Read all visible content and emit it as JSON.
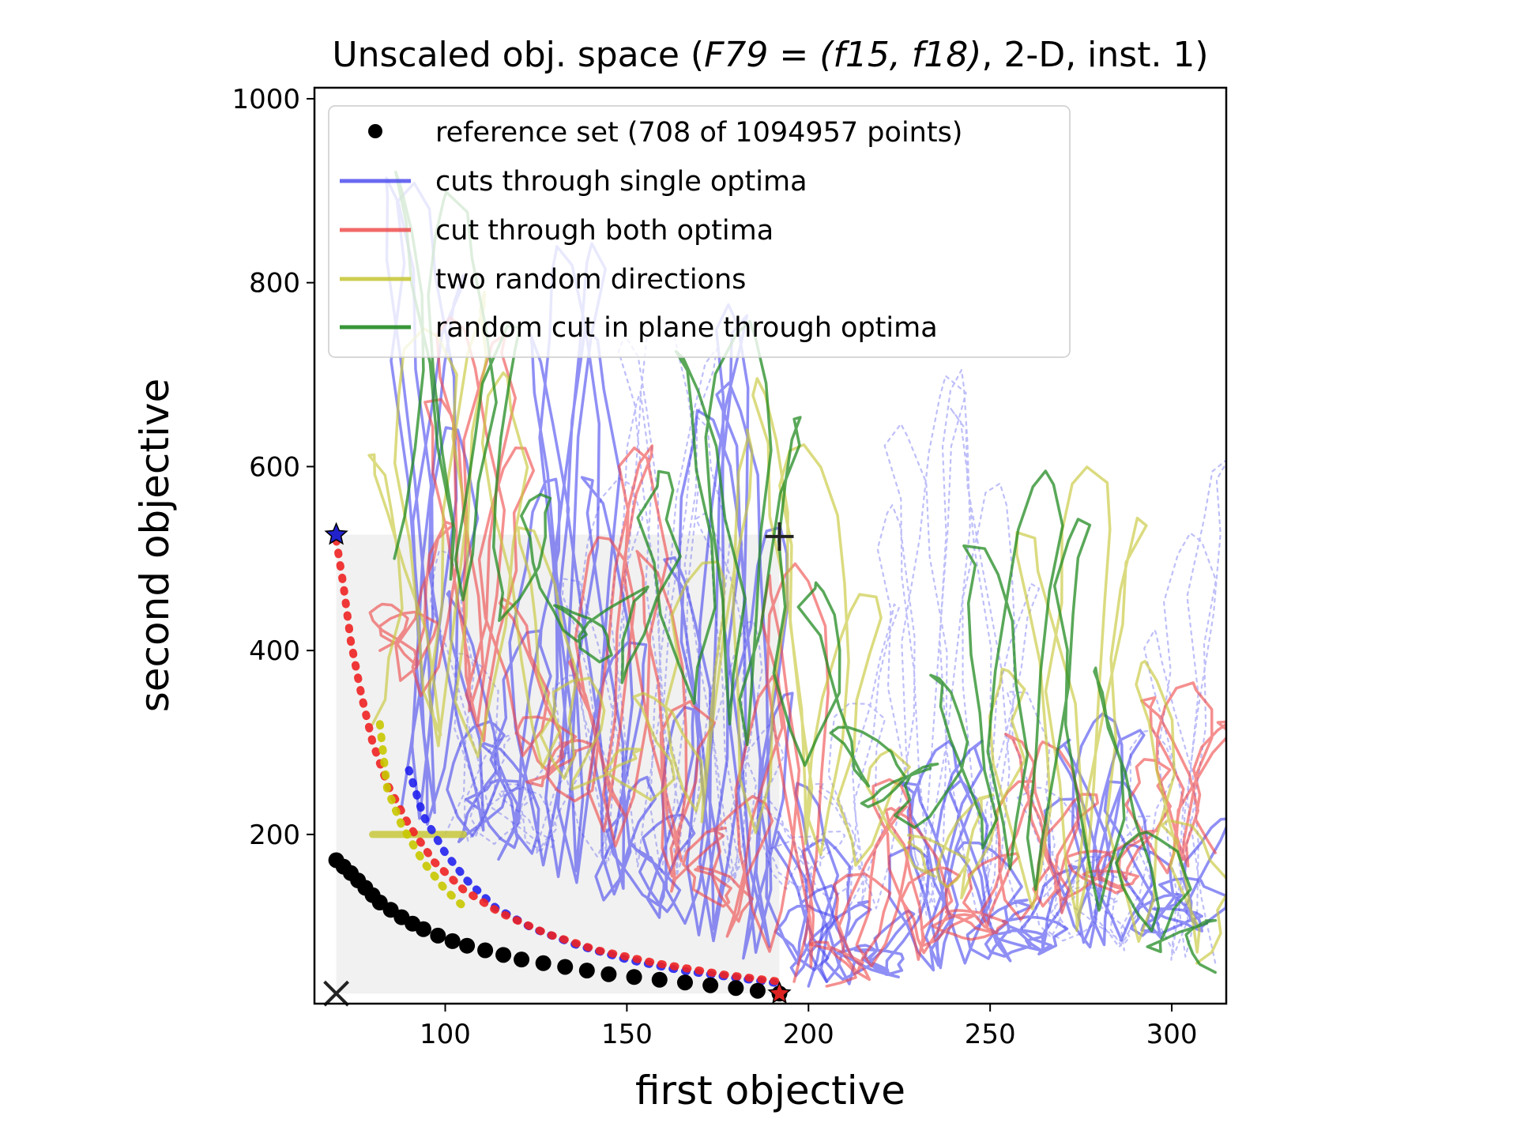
{
  "chart_data": {
    "type": "line",
    "title_text": "Unscaled obj. space (",
    "title_math": "F79 = (f15, f18)",
    "title_tail": ", 2-D, inst. 1)",
    "xlabel": "first objective",
    "ylabel": "second objective",
    "xlim": [
      64,
      315
    ],
    "ylim": [
      16,
      1012
    ],
    "xticks": [
      100,
      150,
      200,
      250,
      300
    ],
    "yticks": [
      200,
      400,
      600,
      800,
      1000
    ],
    "grid": false,
    "legend_position": "top-left",
    "legend": [
      {
        "label": "reference set (708 of 1094957 points)",
        "marker": "dot",
        "color": "#000000"
      },
      {
        "label": "cuts through single optima",
        "marker": "line",
        "color": "#4444ee"
      },
      {
        "label": "cut through both optima",
        "marker": "line",
        "color": "#ee4444"
      },
      {
        "label": "two random directions",
        "marker": "line",
        "color": "#c8c83c"
      },
      {
        "label": "random cut in plane through optima",
        "marker": "line",
        "color": "#228b22"
      }
    ],
    "region_of_interest": {
      "x": [
        70,
        192
      ],
      "y": [
        27,
        526
      ]
    },
    "markers": {
      "ideal_point": {
        "x": 70,
        "y": 27,
        "symbol": "x"
      },
      "nadir_point": {
        "x": 192,
        "y": 524,
        "symbol": "+"
      },
      "optimum_1": {
        "x": 70,
        "y": 526,
        "symbol": "star",
        "color": "#2222cc"
      },
      "optimum_2": {
        "x": 192,
        "y": 27,
        "symbol": "star",
        "color": "#dd2222"
      }
    },
    "reference_set": [
      [
        70,
        172
      ],
      [
        72,
        165
      ],
      [
        74,
        158
      ],
      [
        76,
        150
      ],
      [
        78,
        142
      ],
      [
        80,
        134
      ],
      [
        82,
        126
      ],
      [
        85,
        118
      ],
      [
        88,
        110
      ],
      [
        91,
        103
      ],
      [
        94,
        97
      ],
      [
        98,
        90
      ],
      [
        102,
        84
      ],
      [
        106,
        79
      ],
      [
        111,
        74
      ],
      [
        116,
        69
      ],
      [
        121,
        64
      ],
      [
        127,
        60
      ],
      [
        133,
        56
      ],
      [
        139,
        52
      ],
      [
        145,
        48
      ],
      [
        152,
        45
      ],
      [
        159,
        42
      ],
      [
        166,
        39
      ],
      [
        173,
        36
      ],
      [
        180,
        33
      ],
      [
        186,
        30
      ],
      [
        192,
        27
      ]
    ],
    "series": [
      {
        "name": "cuts through single optima",
        "color": "#4444ee",
        "opacity": 0.6,
        "width": 3.5,
        "style": "pendulum",
        "start": [
          88,
          230
        ],
        "end": [
          205,
          40
        ],
        "amp": 700,
        "ycap": 1012,
        "osc": 30,
        "seed": 1
      },
      {
        "name": "cuts through single optima",
        "color": "#4444ee",
        "opacity": 0.6,
        "width": 3.5,
        "style": "pendulum",
        "start": [
          200,
          35
        ],
        "end": [
          312,
          100
        ],
        "amp": 250,
        "ycap": 1012,
        "osc": 26,
        "seed": 2
      },
      {
        "name": "cuts through single optima",
        "color": "#4444ee",
        "opacity": 0.35,
        "width": 2.2,
        "dash": "4,6",
        "style": "pendulum",
        "start": [
          100,
          200
        ],
        "end": [
          312,
          60
        ],
        "amp": 600,
        "ycap": 1012,
        "osc": 40,
        "seed": 3
      },
      {
        "name": "cut through both optima",
        "color": "#ee4444",
        "opacity": 0.6,
        "width": 3.5,
        "style": "pendulum",
        "start": [
          82,
          400
        ],
        "end": [
          200,
          40
        ],
        "amp": 450,
        "ycap": 1012,
        "osc": 22,
        "seed": 4
      },
      {
        "name": "cut through both optima",
        "color": "#ee4444",
        "opacity": 0.6,
        "width": 3.5,
        "style": "pendulum",
        "start": [
          205,
          35
        ],
        "end": [
          312,
          180
        ],
        "amp": 200,
        "ycap": 800,
        "osc": 20,
        "seed": 5
      },
      {
        "name": "two random directions",
        "color": "#c8c83c",
        "opacity": 0.65,
        "width": 3.5,
        "style": "pendulum",
        "start": [
          80,
          320
        ],
        "end": [
          312,
          60
        ],
        "amp": 500,
        "ycap": 950,
        "osc": 22,
        "seed": 6
      },
      {
        "name": "random cut in plane through optima",
        "color": "#228b22",
        "opacity": 0.75,
        "width": 3.5,
        "style": "pendulum",
        "start": [
          86,
          500
        ],
        "end": [
          312,
          50
        ],
        "amp": 450,
        "ycap": 1000,
        "osc": 20,
        "seed": 7
      }
    ],
    "thick_fronts": [
      {
        "color": "#2222ee",
        "points": [
          [
            90,
            270
          ],
          [
            94,
            220
          ],
          [
            100,
            180
          ],
          [
            106,
            150
          ],
          [
            114,
            120
          ],
          [
            124,
            98
          ],
          [
            136,
            80
          ],
          [
            150,
            64
          ],
          [
            165,
            52
          ],
          [
            180,
            44
          ],
          [
            192,
            38
          ]
        ]
      },
      {
        "color": "#ee2222",
        "points": [
          [
            70,
            520
          ],
          [
            72,
            470
          ],
          [
            74,
            410
          ],
          [
            77,
            350
          ],
          [
            80,
            300
          ],
          [
            84,
            255
          ],
          [
            90,
            210
          ],
          [
            97,
            170
          ],
          [
            105,
            140
          ],
          [
            115,
            115
          ],
          [
            128,
            92
          ],
          [
            142,
            74
          ],
          [
            158,
            60
          ],
          [
            176,
            48
          ],
          [
            192,
            40
          ]
        ]
      },
      {
        "color": "#c8c800",
        "points": [
          [
            82,
            320
          ],
          [
            84,
            250
          ],
          [
            88,
            210
          ],
          [
            94,
            170
          ],
          [
            100,
            140
          ],
          [
            106,
            118
          ]
        ]
      }
    ],
    "yellow_flat": {
      "x": [
        80,
        105
      ],
      "y": 200
    }
  }
}
